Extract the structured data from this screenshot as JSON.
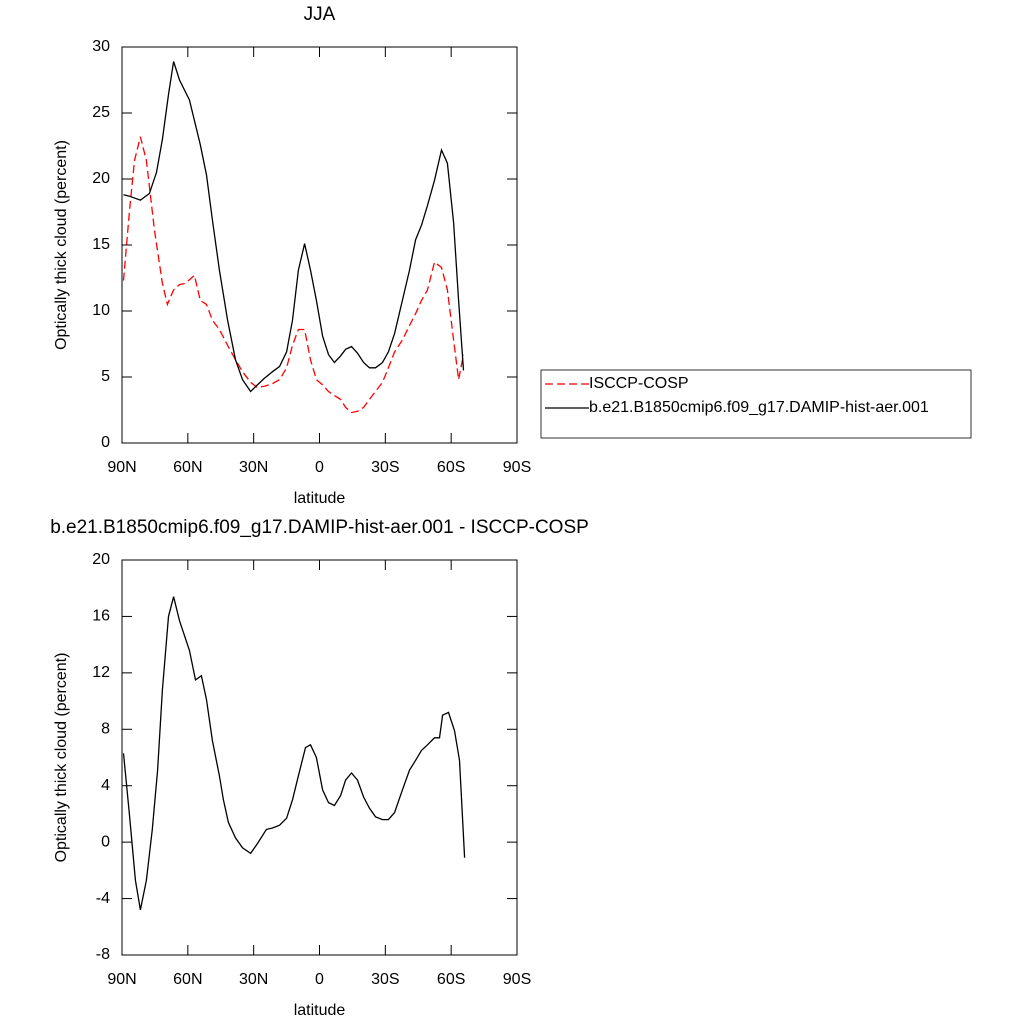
{
  "chart_data": [
    {
      "type": "line",
      "title": "JJA",
      "xlabel": "latitude",
      "ylabel": "Optically thick cloud (percent)",
      "xlim": [
        90,
        -90
      ],
      "xticks": [
        {
          "value": 90,
          "label": "90N"
        },
        {
          "value": 60,
          "label": "60N"
        },
        {
          "value": 30,
          "label": "30N"
        },
        0,
        {
          "value": -30,
          "label": "30S"
        },
        {
          "value": -60,
          "label": "60S"
        },
        {
          "value": -90,
          "label": "90S"
        }
      ],
      "ylim": [
        0,
        30
      ],
      "yticks": [
        0,
        5,
        10,
        15,
        20,
        25,
        30
      ],
      "legend": "right",
      "series": [
        {
          "name": "ISCCP-COSP",
          "color": "#ff0000",
          "line_style": "dashed",
          "x": [
            89.3,
            86.6,
            84.3,
            81.6,
            78.9,
            75.2,
            71.6,
            69.3,
            66.5,
            63.8,
            61.1,
            57.0,
            54.3,
            51.5,
            48.8,
            45.6,
            41.9,
            38.3,
            35.1,
            31.4,
            28.3,
            25.1,
            21.4,
            18.2,
            15.0,
            12.3,
            9.6,
            6.8,
            4.1,
            1.4,
            -1.4,
            -4.1,
            -6.8,
            -9.6,
            -11.9,
            -14.6,
            -17.3,
            -20.1,
            -22.8,
            -25.5,
            -28.7,
            -31.4,
            -34.2,
            -37.8,
            -41.0,
            -43.8,
            -46.5,
            -49.2,
            -52.4,
            -55.6,
            -58.3,
            -61.1,
            -63.4,
            -65.6
          ],
          "values": [
            12.3,
            17.6,
            21.4,
            23.2,
            21.4,
            16.1,
            12.1,
            10.5,
            11.6,
            12.0,
            12.1,
            12.7,
            10.8,
            10.5,
            9.3,
            8.6,
            7.4,
            6.3,
            5.4,
            4.6,
            4.2,
            4.3,
            4.5,
            4.8,
            5.7,
            7.4,
            8.6,
            8.6,
            6.3,
            4.8,
            4.4,
            3.9,
            3.6,
            3.3,
            2.7,
            2.3,
            2.4,
            2.7,
            3.3,
            3.9,
            4.6,
            5.7,
            6.9,
            7.8,
            8.9,
            9.8,
            10.8,
            11.6,
            13.7,
            13.3,
            11.6,
            7.8,
            4.8,
            6.7
          ]
        },
        {
          "name": "b.e21.B1850cmip6.f09_g17.DAMIP-hist-aer.001",
          "color": "#000000",
          "line_style": "solid",
          "x": [
            89.3,
            86.6,
            81.6,
            77.5,
            74.3,
            71.6,
            68.8,
            66.5,
            63.8,
            59.3,
            54.3,
            51.5,
            48.8,
            45.6,
            41.9,
            38.3,
            35.1,
            31.4,
            28.3,
            25.1,
            21.4,
            18.2,
            15.0,
            12.3,
            9.6,
            6.8,
            4.1,
            1.4,
            -1.4,
            -4.1,
            -6.8,
            -9.6,
            -11.9,
            -14.6,
            -17.3,
            -20.1,
            -22.8,
            -25.5,
            -28.7,
            -31.4,
            -34.2,
            -37.8,
            -41.0,
            -43.8,
            -46.5,
            -49.2,
            -52.4,
            -55.6,
            -58.3,
            -61.1,
            -63.4,
            -65.6
          ],
          "values": [
            18.8,
            18.7,
            18.4,
            18.9,
            20.5,
            23.0,
            26.4,
            28.9,
            27.5,
            26.0,
            22.6,
            20.3,
            16.9,
            13.1,
            9.3,
            6.3,
            4.8,
            3.9,
            4.4,
            4.9,
            5.4,
            5.8,
            6.9,
            9.3,
            13.1,
            15.1,
            13.1,
            10.8,
            8.1,
            6.7,
            6.1,
            6.6,
            7.1,
            7.3,
            6.8,
            6.1,
            5.7,
            5.7,
            6.1,
            6.9,
            8.3,
            10.8,
            13.1,
            15.4,
            16.5,
            18.0,
            19.9,
            22.2,
            21.2,
            16.7,
            10.8,
            5.5
          ]
        }
      ]
    },
    {
      "type": "line",
      "title": "b.e21.B1850cmip6.f09_g17.DAMIP-hist-aer.001 - ISCCP-COSP",
      "xlabel": "latitude",
      "ylabel": "Optically thick cloud (percent)",
      "xlim": [
        90,
        -90
      ],
      "xticks": [
        {
          "value": 90,
          "label": "90N"
        },
        {
          "value": 60,
          "label": "60N"
        },
        {
          "value": 30,
          "label": "30N"
        },
        0,
        {
          "value": -30,
          "label": "30S"
        },
        {
          "value": -60,
          "label": "60S"
        },
        {
          "value": -90,
          "label": "90S"
        }
      ],
      "ylim": [
        -8,
        20
      ],
      "yticks": [
        -8,
        -4,
        0,
        4,
        8,
        12,
        16,
        20
      ],
      "series": [
        {
          "color": "#000000",
          "line_style": "solid",
          "x": [
            89.3,
            86.6,
            83.9,
            81.6,
            78.9,
            76.2,
            73.8,
            71.6,
            68.8,
            66.5,
            63.8,
            59.3,
            56.5,
            53.8,
            51.5,
            48.8,
            45.6,
            43.8,
            41.5,
            38.3,
            35.1,
            31.4,
            28.3,
            24.2,
            21.4,
            18.2,
            15.0,
            12.3,
            9.6,
            6.4,
            4.1,
            1.4,
            -1.4,
            -4.1,
            -6.8,
            -9.6,
            -11.9,
            -14.6,
            -17.3,
            -20.1,
            -22.8,
            -25.5,
            -28.7,
            -31.4,
            -34.2,
            -37.8,
            -41.0,
            -43.8,
            -46.5,
            -49.2,
            -52.4,
            -54.7,
            -56.1,
            -58.8,
            -61.5,
            -63.8,
            -66.1
          ],
          "values": [
            6.3,
            1.9,
            -2.7,
            -4.8,
            -2.7,
            0.9,
            5.1,
            10.8,
            16.0,
            17.4,
            15.7,
            13.6,
            11.5,
            11.8,
            10.1,
            7.2,
            4.7,
            3.0,
            1.4,
            0.3,
            -0.4,
            -0.8,
            -0.1,
            0.9,
            1.0,
            1.2,
            1.7,
            3.0,
            4.7,
            6.7,
            6.9,
            6.0,
            3.7,
            2.8,
            2.6,
            3.3,
            4.4,
            4.9,
            4.4,
            3.2,
            2.4,
            1.8,
            1.6,
            1.6,
            2.1,
            3.7,
            5.1,
            5.8,
            6.5,
            6.9,
            7.4,
            7.4,
            9.0,
            9.2,
            7.9,
            5.8,
            -1.1
          ]
        }
      ]
    }
  ]
}
